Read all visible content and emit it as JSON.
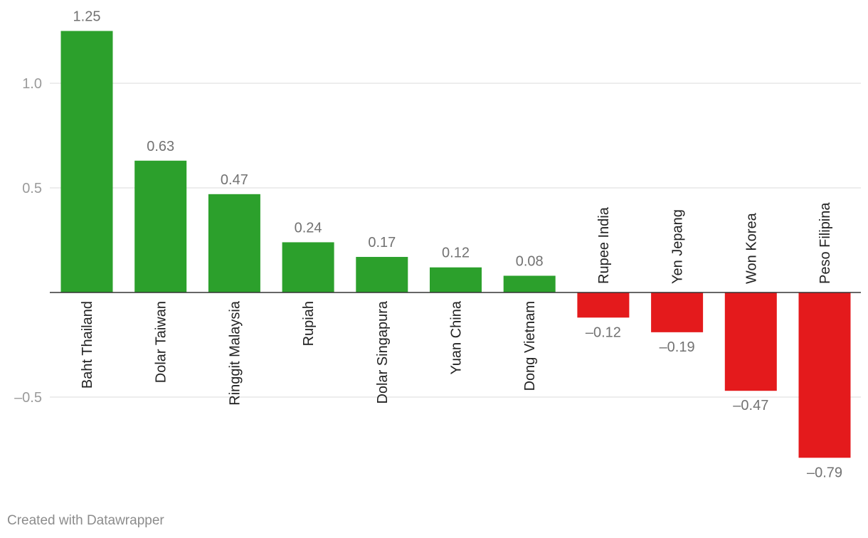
{
  "chart_data": {
    "type": "bar",
    "categories": [
      "Baht Thailand",
      "Dolar Taiwan",
      "Ringgit Malaysia",
      "Rupiah",
      "Dolar Singapura",
      "Yuan China",
      "Dong Vietnam",
      "Rupee India",
      "Yen Jepang",
      "Won Korea",
      "Peso Filipina"
    ],
    "values": [
      1.25,
      0.63,
      0.47,
      0.24,
      0.17,
      0.12,
      0.08,
      -0.12,
      -0.19,
      -0.47,
      -0.79
    ],
    "value_labels": [
      "1.25",
      "0.63",
      "0.47",
      "0.24",
      "0.17",
      "0.12",
      "0.08",
      "–0.12",
      "–0.19",
      "–0.47",
      "–0.79"
    ],
    "yticks": [
      1.0,
      0.5,
      -0.5
    ],
    "ytick_labels": [
      "1.0",
      "0.5",
      "–0.5"
    ],
    "ylim": [
      -0.8,
      1.3
    ],
    "grid": true,
    "title": "",
    "xlabel": "",
    "ylabel": "",
    "colors": {
      "positive": "#2ca02c",
      "negative": "#e41a1c",
      "grid": "#e2e2e2",
      "baseline": "#333333",
      "label_text": "#727272",
      "category_text": "#222222",
      "tick_text": "#9a9a9a"
    }
  },
  "footer": {
    "credit": "Created with Datawrapper"
  }
}
